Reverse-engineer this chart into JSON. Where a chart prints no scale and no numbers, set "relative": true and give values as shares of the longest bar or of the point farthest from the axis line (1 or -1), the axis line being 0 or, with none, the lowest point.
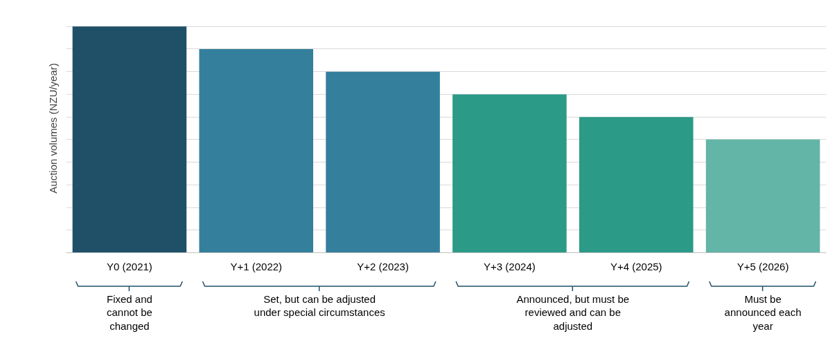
{
  "chart_data": {
    "type": "bar",
    "ylabel": "Auction volumes (NZU/year)",
    "relative": true,
    "grid": "y",
    "categories": [
      "Y0 (2021)",
      "Y+1 (2022)",
      "Y+2 (2023)",
      "Y+3 (2024)",
      "Y+4 (2025)",
      "Y+5 (2026)"
    ],
    "values": [
      1,
      0.9,
      0.8,
      0.7,
      0.6,
      0.5
    ],
    "colors": [
      "#1f5068",
      "#347f9c",
      "#347f9c",
      "#2b9a87",
      "#2b9a87",
      "#62b5a7"
    ],
    "annotations": [
      "Fixed and cannot be changed",
      "Set, but can be adjusted under special circumstances",
      "Announced, but must be reviewed and can be adjusted",
      "Must be announced each year"
    ]
  }
}
